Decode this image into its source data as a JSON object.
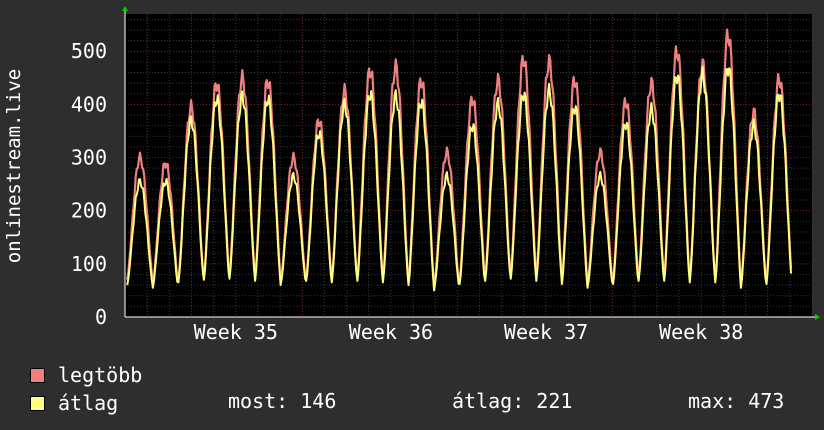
{
  "chart_data": {
    "type": "line",
    "ylabel": "onlinestream.live",
    "ylim": [
      0,
      570
    ],
    "yticks": [
      0,
      100,
      200,
      300,
      400,
      500
    ],
    "x_tick_labels": [
      "Week 35",
      "Week 36",
      "Week 37",
      "Week 38"
    ],
    "x_label_days": [
      5,
      12,
      19,
      26
    ],
    "days_shown": 31,
    "grid": true,
    "series": [
      {
        "name": "legtöbb",
        "color": "#f08080",
        "daily_peak": [
          300,
          290,
          395,
          440,
          450,
          445,
          300,
          370,
          425,
          465,
          470,
          445,
          310,
          410,
          445,
          485,
          480,
          445,
          310,
          405,
          440,
          500,
          475,
          530,
          385,
          448
        ],
        "daily_min": [
          70,
          60,
          70,
          75,
          80,
          75,
          65,
          75,
          70,
          75,
          70,
          65,
          55,
          70,
          75,
          80,
          75,
          70,
          60,
          70,
          75,
          75,
          70,
          70,
          60,
          70
        ]
      },
      {
        "name": "átlag",
        "color": "#ffff80",
        "daily_peak": [
          255,
          255,
          370,
          410,
          415,
          410,
          265,
          345,
          400,
          420,
          415,
          405,
          265,
          360,
          400,
          420,
          425,
          395,
          265,
          365,
          390,
          455,
          455,
          470,
          360,
          420
        ],
        "daily_min": [
          60,
          55,
          65,
          70,
          72,
          68,
          60,
          68,
          65,
          68,
          65,
          60,
          50,
          62,
          68,
          72,
          68,
          62,
          55,
          62,
          68,
          68,
          65,
          65,
          55,
          62
        ]
      }
    ]
  },
  "stats": {
    "most": "most: 146",
    "atlag": "átlag: 221",
    "max": "max: 473"
  }
}
